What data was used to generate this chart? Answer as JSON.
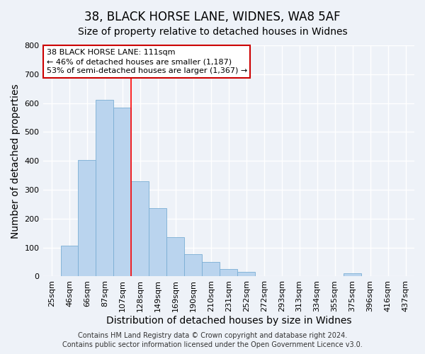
{
  "title": "38, BLACK HORSE LANE, WIDNES, WA8 5AF",
  "subtitle": "Size of property relative to detached houses in Widnes",
  "xlabel": "Distribution of detached houses by size in Widnes",
  "ylabel": "Number of detached properties",
  "bin_labels": [
    "25sqm",
    "46sqm",
    "66sqm",
    "87sqm",
    "107sqm",
    "128sqm",
    "149sqm",
    "169sqm",
    "190sqm",
    "210sqm",
    "231sqm",
    "252sqm",
    "272sqm",
    "293sqm",
    "313sqm",
    "334sqm",
    "355sqm",
    "375sqm",
    "396sqm",
    "416sqm",
    "437sqm"
  ],
  "bar_values": [
    0,
    107,
    403,
    612,
    585,
    330,
    237,
    137,
    76,
    50,
    25,
    15,
    0,
    0,
    0,
    0,
    0,
    10,
    0,
    0,
    0
  ],
  "bar_color": "#bad4ee",
  "bar_edge_color": "#7aaed4",
  "bar_width": 1.0,
  "red_line_x": 4.5,
  "ylim": [
    0,
    800
  ],
  "yticks": [
    0,
    100,
    200,
    300,
    400,
    500,
    600,
    700,
    800
  ],
  "annotation_text": "38 BLACK HORSE LANE: 111sqm\n← 46% of detached houses are smaller (1,187)\n53% of semi-detached houses are larger (1,367) →",
  "annotation_box_color": "#ffffff",
  "annotation_box_edge": "#cc0000",
  "footer_line1": "Contains HM Land Registry data © Crown copyright and database right 2024.",
  "footer_line2": "Contains public sector information licensed under the Open Government Licence v3.0.",
  "bg_color": "#eef2f8",
  "grid_color": "#ffffff",
  "title_fontsize": 12,
  "subtitle_fontsize": 10,
  "axis_label_fontsize": 10,
  "tick_fontsize": 8,
  "footer_fontsize": 7,
  "annotation_fontsize": 8
}
